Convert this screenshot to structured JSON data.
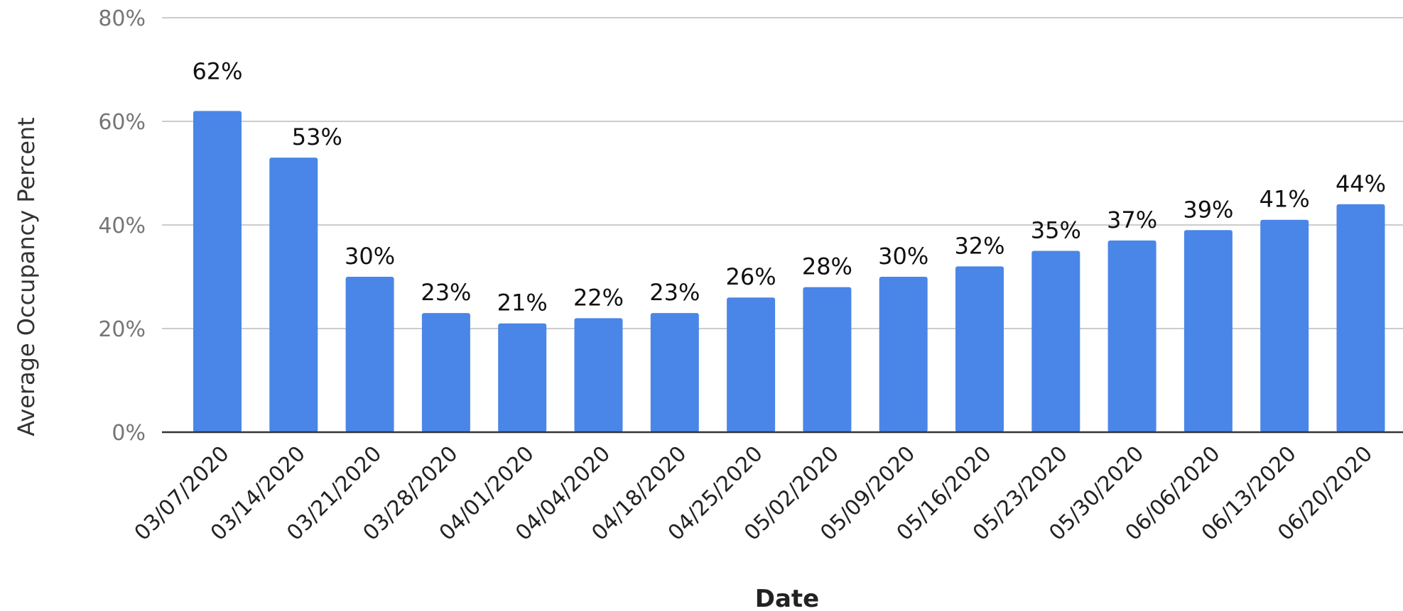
{
  "chart_data": {
    "type": "bar",
    "title": "",
    "xlabel": "Date",
    "ylabel": "Average Occupancy Percent",
    "ylim": [
      0,
      80
    ],
    "yticks": [
      "0%",
      "20%",
      "40%",
      "60%",
      "80%"
    ],
    "grid": true,
    "legend": "none",
    "bar_color": "#4a86e8",
    "categories": [
      "03/07/2020",
      "03/14/2020",
      "03/21/2020",
      "03/28/2020",
      "04/01/2020",
      "04/04/2020",
      "04/18/2020",
      "04/25/2020",
      "05/02/2020",
      "05/09/2020",
      "05/16/2020",
      "05/23/2020",
      "05/30/2020",
      "06/06/2020",
      "06/13/2020",
      "06/20/2020"
    ],
    "values": [
      62,
      53,
      30,
      23,
      21,
      22,
      23,
      26,
      28,
      30,
      32,
      35,
      37,
      39,
      41,
      44
    ],
    "data_labels": [
      "62%",
      "53%",
      "30%",
      "23%",
      "21%",
      "22%",
      "23%",
      "26%",
      "28%",
      "30%",
      "32%",
      "35%",
      "37%",
      "39%",
      "41%",
      "44%"
    ]
  }
}
